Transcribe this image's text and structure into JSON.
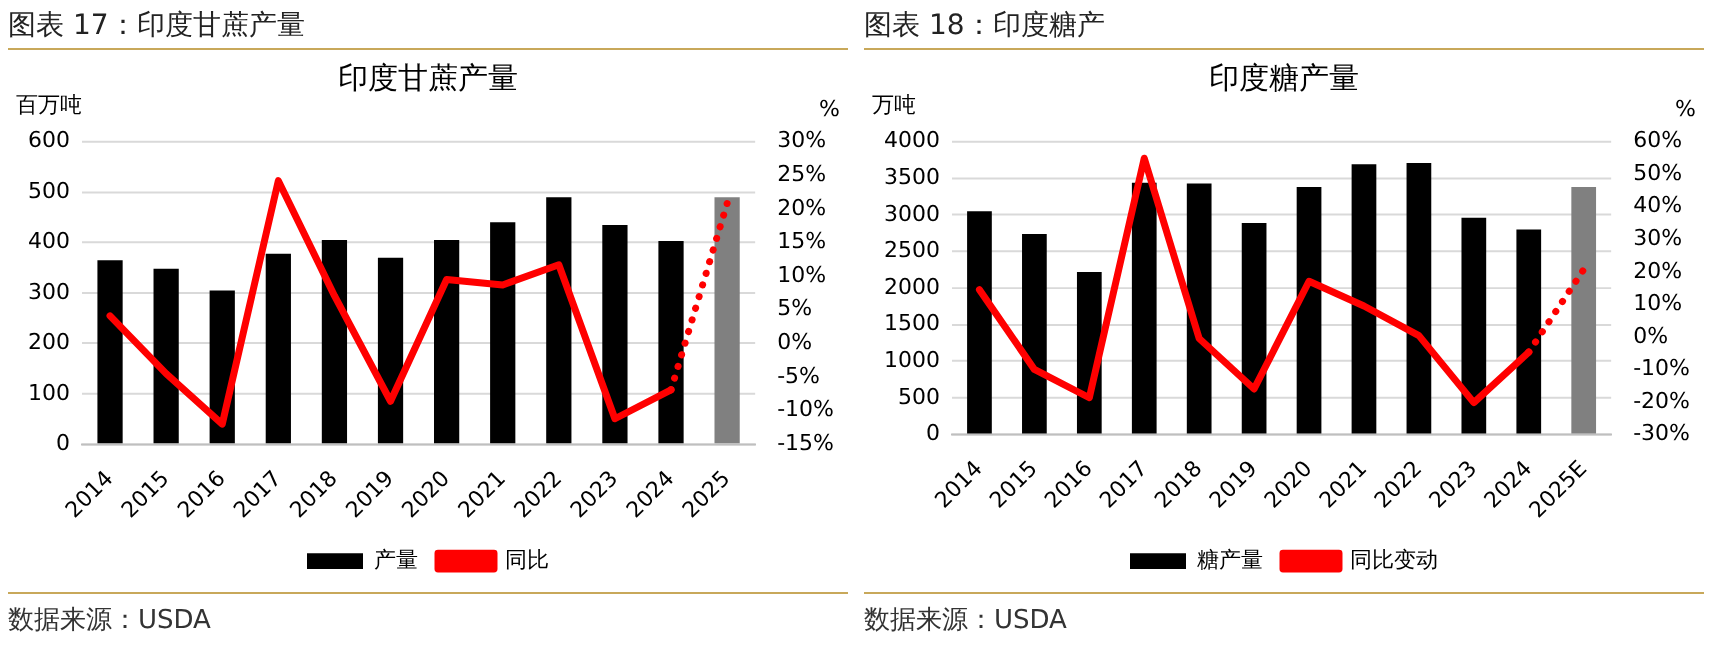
{
  "chart_data": [
    {
      "type": "bar",
      "title": "印度甘蔗产量",
      "ylabel": "百万吨",
      "y2label": "%",
      "annotations": [
        "图表 17：印度甘蔗产量",
        "数据来源：USDA"
      ],
      "categories": [
        "2014",
        "2015",
        "2016",
        "2017",
        "2018",
        "2019",
        "2020",
        "2021",
        "2022",
        "2023",
        "2024",
        "2025"
      ],
      "series": [
        {
          "name": "产量",
          "color": "#000000",
          "colors": [
            "#000000",
            "#000000",
            "#000000",
            "#000000",
            "#000000",
            "#000000",
            "#000000",
            "#000000",
            "#000000",
            "#000000",
            "#000000",
            "#808080"
          ],
          "values": [
            365,
            348,
            305,
            378,
            405,
            370,
            405,
            440,
            490,
            435,
            403,
            490
          ]
        },
        {
          "name": "同比",
          "type": "line",
          "axis": "y2",
          "color": "#ff0000",
          "line_style": "solid",
          "values": [
            4.1,
            -4.5,
            -12,
            24.2,
            7.1,
            -8.6,
            9.5,
            8.7,
            11.7,
            -11.2,
            -6.9,
            null
          ]
        },
        {
          "type": "line",
          "axis": "y2",
          "color": "#ff0000",
          "line_style": "dotted",
          "values": [
            null,
            null,
            null,
            null,
            null,
            null,
            null,
            null,
            null,
            null,
            -6.9,
            20.8
          ]
        }
      ],
      "ylim": [
        0,
        600
      ],
      "yticks": [
        0,
        100,
        200,
        300,
        400,
        500,
        600
      ],
      "y2lim": [
        -15,
        30
      ],
      "y2ticks": [
        {
          "value": -15,
          "label": "-15%"
        },
        {
          "value": -10,
          "label": "-10%"
        },
        {
          "value": -5,
          "label": "-5%"
        },
        {
          "value": 0,
          "label": "0%"
        },
        {
          "value": 5,
          "label": "5%"
        },
        {
          "value": 10,
          "label": "10%"
        },
        {
          "value": 15,
          "label": "15%"
        },
        {
          "value": 20,
          "label": "20%"
        },
        {
          "value": 25,
          "label": "25%"
        },
        {
          "value": 30,
          "label": "30%"
        }
      ],
      "grid": "y",
      "legend": "bottom",
      "marker": "none"
    },
    {
      "type": "bar",
      "title": "印度糖产量",
      "ylabel": "万吨",
      "y2label": "%",
      "annotations": [
        "图表 18：印度糖产",
        "数据来源：USDA"
      ],
      "categories": [
        "2014",
        "2015",
        "2016",
        "2017",
        "2018",
        "2019",
        "2020",
        "2021",
        "2022",
        "2023",
        "2024",
        "2025E"
      ],
      "series": [
        {
          "name": "糖产量",
          "color": "#000000",
          "colors": [
            "#000000",
            "#000000",
            "#000000",
            "#000000",
            "#000000",
            "#000000",
            "#000000",
            "#000000",
            "#000000",
            "#000000",
            "#000000",
            "#808080"
          ],
          "values": [
            3050,
            2740,
            2220,
            3440,
            3430,
            2890,
            3380,
            3690,
            3710,
            2960,
            2800,
            3380
          ]
        },
        {
          "name": "同比变动",
          "type": "line",
          "axis": "y2",
          "color": "#ff0000",
          "line_style": "solid",
          "values": [
            14.5,
            -10,
            -18.7,
            54.9,
            -0.5,
            -16,
            17.1,
            9.5,
            0.4,
            -20.2,
            -4.7,
            null
          ]
        },
        {
          "type": "line",
          "axis": "y2",
          "color": "#ff0000",
          "line_style": "dotted",
          "values": [
            null,
            null,
            null,
            null,
            null,
            null,
            null,
            null,
            null,
            null,
            -4.7,
            20.7
          ]
        }
      ],
      "ylim": [
        0,
        4000
      ],
      "yticks": [
        0,
        500,
        1000,
        1500,
        2000,
        2500,
        3000,
        3500,
        4000
      ],
      "y2lim": [
        -30,
        60
      ],
      "y2ticks": [
        {
          "value": -30,
          "label": "-30%"
        },
        {
          "value": -20,
          "label": "-20%"
        },
        {
          "value": -10,
          "label": "-10%"
        },
        {
          "value": 0,
          "label": "0%"
        },
        {
          "value": 10,
          "label": "10%"
        },
        {
          "value": 20,
          "label": "20%"
        },
        {
          "value": 30,
          "label": "30%"
        },
        {
          "value": 40,
          "label": "40%"
        },
        {
          "value": 50,
          "label": "50%"
        },
        {
          "value": 60,
          "label": "60%"
        }
      ],
      "grid": "y",
      "legend": "bottom",
      "marker": "none"
    }
  ]
}
